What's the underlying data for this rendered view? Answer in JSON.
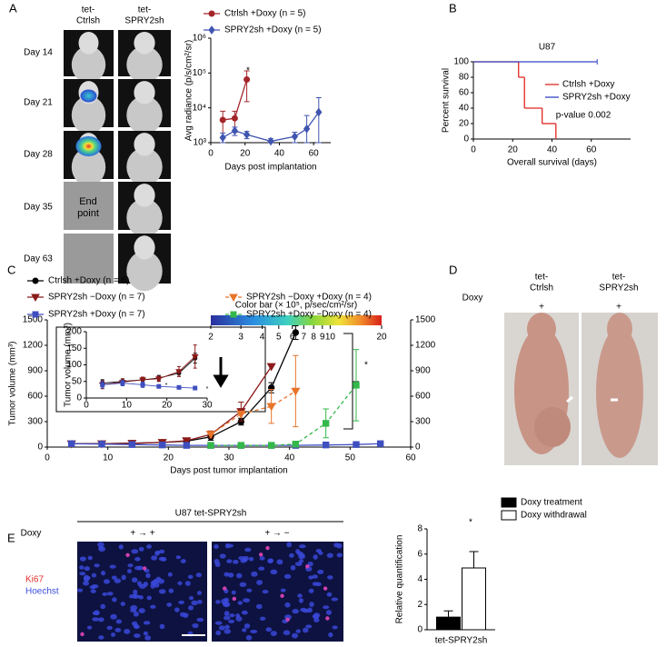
{
  "panel_labels": [
    "A",
    "B",
    "C",
    "D",
    "E"
  ],
  "panel_a": {
    "column_labels": [
      [
        "tet-",
        "Ctrlsh"
      ],
      [
        "tet-",
        "SPRY2sh"
      ]
    ],
    "row_labels": [
      "Day 14",
      "Day 21",
      "Day 28",
      "Day 35",
      "Day 63"
    ],
    "end_point": [
      "End",
      "point"
    ],
    "colorbar": {
      "title": "Color bar (× 10⁵, p/sec/cm²/sr)",
      "lim": [
        2,
        20
      ],
      "log": true,
      "ticks": [
        2,
        3,
        4,
        5,
        6,
        7,
        8,
        9,
        10,
        20
      ]
    }
  },
  "panel_d": {
    "column_labels": [
      [
        "tet-",
        "Ctrlsh"
      ],
      [
        "tet-",
        "SPRY2sh"
      ]
    ],
    "row_label": "Doxy",
    "values": [
      "+",
      "+"
    ]
  },
  "panel_e": {
    "title": "U87 tet-SPRY2sh",
    "row_label": "Doxy",
    "conditions": [
      "+ → +",
      "+ → −"
    ],
    "stains": [
      "Ki67",
      "Hoechst"
    ]
  },
  "chart_data": [
    {
      "type": "line",
      "ylabel": "Avg radiance (p/s/cm²/sr)",
      "xlabel": "Days post implantation",
      "log_y": true,
      "xlim": [
        0,
        70
      ],
      "xticks": [
        0,
        20,
        40,
        60
      ],
      "ylim": [
        1000,
        1000000
      ],
      "yticks": [
        {
          "value": 1000,
          "label": "10³"
        },
        {
          "value": 10000,
          "label": "10⁴"
        },
        {
          "value": 100000,
          "label": "10⁵"
        },
        {
          "value": 1000000,
          "label": "10⁶"
        }
      ],
      "series": [
        {
          "name": "Ctrlsh +Doxy (n = 5)",
          "color": "#a3262a",
          "marker": "circle",
          "x": [
            7,
            14,
            21
          ],
          "values": [
            4500,
            5000,
            65000
          ],
          "errors": [
            3500,
            3000,
            50000
          ]
        },
        {
          "name": "SPRY2sh +Doxy (n = 5)",
          "color": "#4055b0",
          "marker": "diamond",
          "x": [
            7,
            14,
            21,
            35,
            49,
            56,
            63
          ],
          "values": [
            1400,
            2200,
            1700,
            1100,
            1500,
            2500,
            7500
          ],
          "errors": [
            500,
            600,
            400,
            200,
            500,
            3500,
            12000
          ]
        }
      ],
      "annotations": [
        "*"
      ]
    },
    {
      "type": "step",
      "title": "U87",
      "xlabel": "Overall survival (days)",
      "ylabel": "Percent survival",
      "xlim": [
        0,
        80
      ],
      "xticks": [
        0,
        20,
        40,
        60
      ],
      "ylim": [
        0,
        100
      ],
      "yticks": [
        0,
        20,
        40,
        60,
        80,
        100
      ],
      "series": [
        {
          "name": "Ctrlsh +Doxy",
          "color": "#e0251f",
          "x": [
            0,
            23,
            26,
            35,
            42
          ],
          "values": [
            100,
            80,
            40,
            20,
            0
          ]
        },
        {
          "name": "SPRY2sh +Doxy",
          "color": "#3343c4",
          "x": [
            0,
            63
          ],
          "values": [
            100,
            100
          ]
        }
      ],
      "annotations": [
        "p-value 0.002"
      ]
    },
    {
      "type": "line",
      "xlabel": "Days post tumor implantation",
      "ylabel": "Tumor volume (mm³)",
      "xlim": [
        0,
        60
      ],
      "xticks": [
        0,
        10,
        20,
        30,
        40,
        50,
        60
      ],
      "ylim": [
        0,
        1500
      ],
      "yticks": [
        0,
        300,
        600,
        900,
        1200,
        1500
      ],
      "y2lim": [
        0,
        1500
      ],
      "y2ticks": [
        0,
        300,
        600,
        900,
        1200,
        1500
      ],
      "series": [
        {
          "name": "Ctrlsh +Doxy (n = 6)",
          "color": "#000000",
          "marker": "circle",
          "x": [
            4,
            9,
            14,
            19,
            23,
            27,
            32,
            37,
            41
          ],
          "values": [
            40,
            40,
            45,
            55,
            70,
            120,
            300,
            700,
            1350
          ],
          "errors": [
            null,
            null,
            null,
            null,
            null,
            40,
            40,
            60,
            80
          ]
        },
        {
          "name": "SPRY2sh −Doxy (n = 7)",
          "color": "#8b1a1a",
          "marker": "triangle-down",
          "x": [
            4,
            9,
            14,
            19,
            23,
            27,
            32,
            37
          ],
          "values": [
            40,
            40,
            45,
            55,
            75,
            150,
            420,
            950
          ],
          "errors": [
            null,
            null,
            null,
            null,
            null,
            40,
            110,
            null
          ]
        },
        {
          "name": "SPRY2sh +Doxy (n = 7)",
          "color": "#3f4fbf",
          "marker": "square",
          "x": [
            4,
            9,
            14,
            19,
            23,
            27,
            32,
            37,
            41,
            46,
            51,
            55
          ],
          "values": [
            40,
            35,
            30,
            25,
            20,
            20,
            20,
            20,
            20,
            25,
            30,
            40
          ]
        },
        {
          "name": "SPRY2sh −Doxy +Doxy (n = 4)",
          "color": "#e8742a",
          "marker": "triangle-down",
          "dashed": true,
          "x": [
            27,
            32,
            37,
            41
          ],
          "values": [
            150,
            390,
            480,
            660
          ],
          "errors": [
            null,
            null,
            200,
            420
          ]
        },
        {
          "name": "SPRY2sh +Doxy −Doxy (n = 4)",
          "color": "#34b84a",
          "marker": "square",
          "dashed": true,
          "x": [
            27,
            32,
            37,
            41,
            46,
            51
          ],
          "values": [
            20,
            20,
            20,
            35,
            280,
            730
          ],
          "errors": [
            null,
            null,
            null,
            null,
            170,
            420
          ]
        }
      ],
      "annotations": [
        "*"
      ]
    },
    {
      "type": "line",
      "ylabel": "Tumor volume (mm³)",
      "xlim": [
        0,
        30
      ],
      "xticks": [
        0,
        10,
        20,
        30
      ],
      "ylim": [
        0,
        200
      ],
      "yticks": [
        0,
        50,
        100,
        150,
        200
      ],
      "series": [
        {
          "color": "#000000",
          "marker": "circle",
          "x": [
            4,
            9,
            14,
            18,
            23,
            27
          ],
          "values": [
            45,
            50,
            55,
            60,
            75,
            120
          ],
          "errors": [
            10,
            8,
            8,
            8,
            10,
            15
          ]
        },
        {
          "color": "#8b1a1a",
          "marker": "triangle-down",
          "x": [
            4,
            9,
            14,
            18,
            23,
            27
          ],
          "values": [
            40,
            48,
            55,
            58,
            80,
            125
          ],
          "errors": [
            12,
            10,
            8,
            8,
            15,
            35
          ]
        },
        {
          "color": "#3f4fbf",
          "marker": "square",
          "x": [
            4,
            9,
            14,
            18,
            23,
            27
          ],
          "values": [
            40,
            45,
            40,
            35,
            32,
            30
          ],
          "errors": [
            10,
            8,
            8,
            5,
            5,
            5
          ]
        }
      ],
      "annotations": [
        "*",
        "*"
      ]
    },
    {
      "type": "bar",
      "ylabel": "Relative quantification",
      "categories": [
        "tet-SPRY2sh"
      ],
      "ylim": [
        0,
        8
      ],
      "yticks": [
        0,
        2,
        4,
        6,
        8
      ],
      "series": [
        {
          "name": "Doxy treatment",
          "color": "#000000",
          "values": [
            1.0
          ],
          "errors": [
            0.5
          ]
        },
        {
          "name": "Doxy withdrawal",
          "color": "#ffffff",
          "values": [
            4.9
          ],
          "errors": [
            1.3
          ]
        }
      ],
      "annotations": [
        "*"
      ]
    }
  ]
}
